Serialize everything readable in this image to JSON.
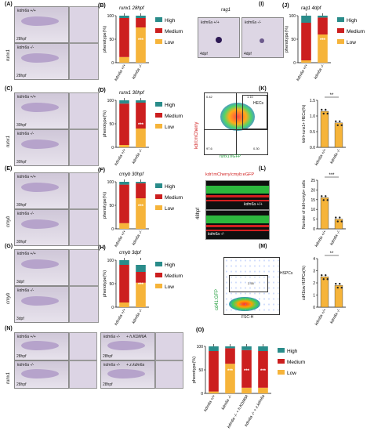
{
  "panels": {
    "A": {
      "label": "(A)",
      "gene": "runx1",
      "rows": [
        {
          "geno": "kdm6a +/+",
          "stage": "28hpf"
        },
        {
          "geno": "kdm6a -/-",
          "stage": "28hpf"
        }
      ]
    },
    "C": {
      "label": "(C)",
      "gene": "runx1",
      "rows": [
        {
          "geno": "kdm6a +/+",
          "stage": "30hpf"
        },
        {
          "geno": "kdm6a -/-",
          "stage": "30hpf"
        }
      ]
    },
    "E": {
      "label": "(E)",
      "gene": "cmyb",
      "rows": [
        {
          "geno": "kdm6a +/+",
          "stage": "30hpf"
        },
        {
          "geno": "kdm6a -/-",
          "stage": "30hpf"
        }
      ]
    },
    "G": {
      "label": "(G)",
      "gene": "cmyb",
      "rows": [
        {
          "geno": "kdm6a +/+",
          "stage": "3dpf"
        },
        {
          "geno": "kdm6a -/-",
          "stage": "3dpf"
        }
      ]
    },
    "I": {
      "label": "(I)",
      "gene": "rag1",
      "rows": [
        {
          "geno": "kdm6a +/+",
          "stage": "4dpf"
        },
        {
          "geno": "kdm6a -/-",
          "stage": "4dpf"
        }
      ]
    },
    "K": {
      "label": "(K)",
      "flow_y": "kdrl:mCherry",
      "flow_x": "runx1:eGFP",
      "gate": "HECs",
      "quads": [
        "0.42",
        "1.10",
        "97.6",
        "0.30"
      ],
      "bar_ylabel": "kdrl+runx1+ HECs(%)",
      "sig": "**"
    },
    "L": {
      "label": "(L)",
      "title": "kdrl:mCherry/cmyb:eGFP",
      "stage": "48hpf",
      "rows": [
        "kdm6a +/+",
        "kdm6a -/-"
      ],
      "bar_ylabel": "Number of kdrl+cmyb+ cells",
      "sig": "***"
    },
    "M": {
      "label": "(M)",
      "flow_y": "cd41:GFP",
      "flow_x": "FSC-H",
      "gate": "HSPCs",
      "gate_val": "2.55",
      "bar_ylabel": "cd41low HSPCs(%)",
      "sig": "**"
    },
    "N": {
      "label": "(N)",
      "gene": "runx1",
      "cells": [
        {
          "geno": "kdm6a +/+",
          "stage": "28hpf"
        },
        {
          "geno": "kdm6a -/-",
          "add": "+ h.KDM6A",
          "stage": "28hpf"
        },
        {
          "geno": "kdm6a -/-",
          "stage": "28hpf"
        },
        {
          "geno": "kdm6a -/-",
          "add": "+ z.kdm6a",
          "stage": "28hpf"
        }
      ]
    }
  },
  "legend": {
    "high": "High",
    "medium": "Medium",
    "low": "Low"
  },
  "colors": {
    "high": "#2a8c8a",
    "medium": "#cc1f1f",
    "low": "#f6b43a"
  },
  "x_labels": [
    "kdm6a +/+",
    "kdm6a -/-"
  ],
  "chart_data": [
    {
      "panel": "(B)",
      "type": "bar",
      "title": "runx1 28hpf",
      "ylabel": "phenotype(%)",
      "ylim": [
        0,
        100
      ],
      "categories": [
        "kdm6a +/+",
        "kdm6a -/-"
      ],
      "series": [
        {
          "name": "Low",
          "values": [
            12,
            75
          ]
        },
        {
          "name": "Medium",
          "values": [
            83,
            20
          ]
        },
        {
          "name": "High",
          "values": [
            5,
            5
          ]
        }
      ],
      "sig": "***"
    },
    {
      "panel": "(D)",
      "type": "bar",
      "title": "runx1 30hpf",
      "ylabel": "phenotype(%)",
      "ylim": [
        0,
        100
      ],
      "categories": [
        "kdm6a +/+",
        "kdm6a -/-"
      ],
      "series": [
        {
          "name": "Low",
          "values": [
            5,
            40
          ]
        },
        {
          "name": "Medium",
          "values": [
            88,
            55
          ]
        },
        {
          "name": "High",
          "values": [
            7,
            5
          ]
        }
      ],
      "sig": "***"
    },
    {
      "panel": "(F)",
      "type": "bar",
      "title": "cmyb 30hpf",
      "ylabel": "phenotype(%)",
      "ylim": [
        0,
        100
      ],
      "categories": [
        "kdm6a +/+",
        "kdm6a -/-"
      ],
      "series": [
        {
          "name": "Low",
          "values": [
            12,
            65
          ]
        },
        {
          "name": "Medium",
          "values": [
            82,
            32
          ]
        },
        {
          "name": "High",
          "values": [
            6,
            3
          ]
        }
      ],
      "sig": "***"
    },
    {
      "panel": "(H)",
      "type": "bar",
      "title": "cmyb 3dpf",
      "ylabel": "phenotype(%)",
      "ylim": [
        0,
        100
      ],
      "categories": [
        "kdm6a +/+",
        "kdm6a -/-"
      ],
      "series": [
        {
          "name": "Low",
          "values": [
            10,
            52
          ]
        },
        {
          "name": "Medium",
          "values": [
            80,
            23
          ]
        },
        {
          "name": "High",
          "values": [
            10,
            15
          ]
        }
      ],
      "sig": "***"
    },
    {
      "panel": "(J)",
      "type": "bar",
      "title": "rag1 4dpf",
      "ylabel": "phenotype(%)",
      "ylim": [
        0,
        100
      ],
      "categories": [
        "kdm6a +/+",
        "kdm6a -/-"
      ],
      "series": [
        {
          "name": "Low",
          "values": [
            5,
            60
          ]
        },
        {
          "name": "Medium",
          "values": [
            80,
            36
          ]
        },
        {
          "name": "High",
          "values": [
            15,
            4
          ]
        }
      ],
      "sig": "***"
    },
    {
      "panel": "(O)",
      "type": "bar",
      "ylabel": "phenotype(%)",
      "ylim": [
        0,
        100
      ],
      "categories": [
        "kdm6a +/+",
        "kdm6a -/-",
        "kdm6a -/- + h.KDM6A",
        "kdm6a -/- + z.kdm6a"
      ],
      "series": [
        {
          "name": "Low",
          "values": [
            4,
            63,
            12,
            12
          ]
        },
        {
          "name": "Medium",
          "values": [
            86,
            33,
            80,
            78
          ]
        },
        {
          "name": "High",
          "values": [
            10,
            4,
            8,
            10
          ]
        }
      ],
      "sig": [
        "***",
        "***",
        "***"
      ]
    },
    {
      "panel": "(K) bar",
      "type": "bar",
      "ylabel": "kdrl+runx1+ HECs(%)",
      "ylim": [
        0,
        1.5
      ],
      "yticks": [
        "0.0",
        "0.5",
        "1.0",
        "1.5"
      ],
      "categories": [
        "kdm6a +/+",
        "kdm6a -/-"
      ],
      "values": [
        1.15,
        0.78
      ],
      "color": [
        "#f6b43a",
        "#f6b43a"
      ]
    },
    {
      "panel": "(L) bar",
      "type": "bar",
      "ylabel": "Number of kdrl+cmyb+ cells",
      "ylim": [
        0,
        25
      ],
      "yticks": [
        "0",
        "5",
        "10",
        "15",
        "20",
        "25"
      ],
      "categories": [
        "kdm6a +/+",
        "kdm6a -/-"
      ],
      "values": [
        16,
        5
      ],
      "color": [
        "#f6b43a",
        "#f6b43a"
      ]
    },
    {
      "panel": "(M) bar",
      "type": "bar",
      "ylabel": "cd41low HSPCs(%)",
      "ylim": [
        0,
        4
      ],
      "yticks": [
        "0",
        "1",
        "2",
        "3",
        "4"
      ],
      "categories": [
        "kdm6a +/+",
        "kdm6a -/-"
      ],
      "values": [
        2.5,
        1.8
      ],
      "color": [
        "#f6b43a",
        "#f6b43a"
      ]
    }
  ]
}
